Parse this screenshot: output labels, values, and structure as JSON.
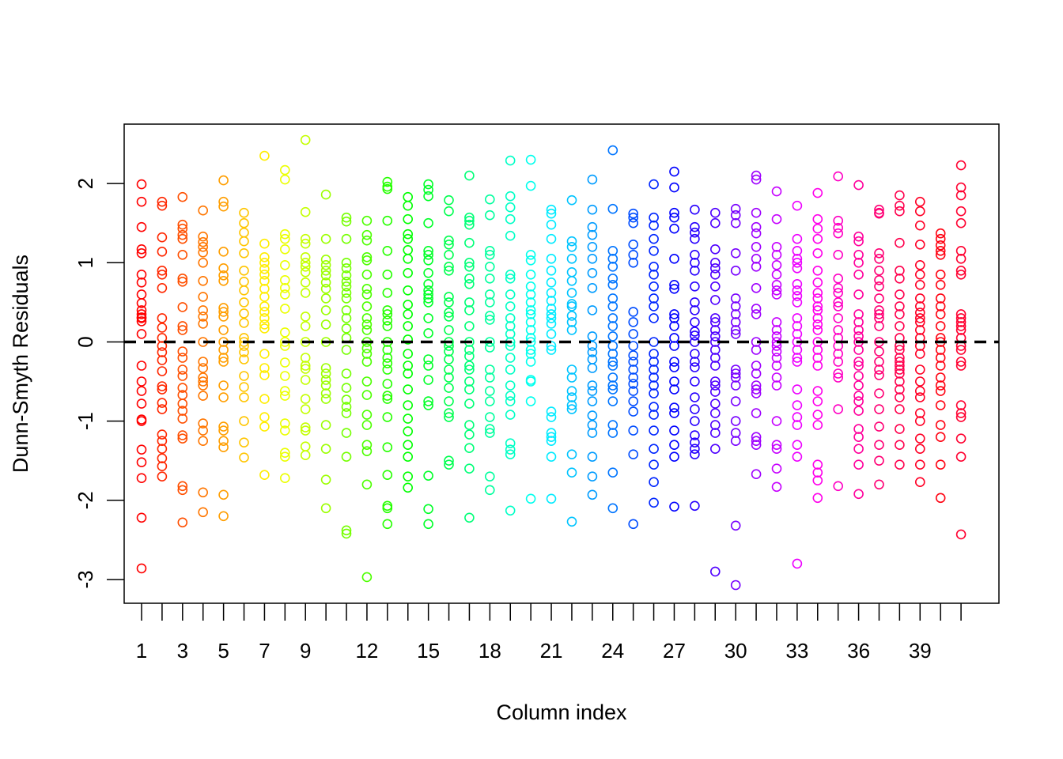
{
  "chart_data": {
    "type": "scatter",
    "title": "",
    "xlabel": "Column index",
    "ylabel": "Dunn-Smyth Residuals",
    "xlim": [
      0.15,
      42.85
    ],
    "ylim": [
      -3.3,
      2.75
    ],
    "x_tick_marks": [
      1,
      2,
      3,
      4,
      5,
      6,
      7,
      8,
      9,
      10,
      11,
      12,
      13,
      14,
      15,
      16,
      17,
      18,
      19,
      20,
      21,
      22,
      23,
      24,
      25,
      26,
      27,
      28,
      29,
      30,
      31,
      32,
      33,
      34,
      35,
      36,
      37,
      38,
      39,
      40,
      41
    ],
    "x_tick_labels": [
      "1",
      "3",
      "5",
      "7",
      "9",
      "12",
      "15",
      "18",
      "21",
      "24",
      "27",
      "30",
      "33",
      "36",
      "39"
    ],
    "y_ticks": [
      -3,
      -2,
      -1,
      0,
      1,
      2
    ],
    "y_tick_labels": [
      "-3",
      "-2",
      "-1",
      "0",
      "1",
      "2"
    ],
    "reference_line": {
      "y": 0,
      "style": "dashed",
      "color": "#000000"
    },
    "grid": false,
    "legend": "none",
    "marker": "open-circle",
    "color_scheme": "rainbow by column index (red to magenta-red)",
    "colors": [
      "#FF0000",
      "#FF2700",
      "#FF4F00",
      "#FF7600",
      "#FF9E00",
      "#FFC500",
      "#FFED00",
      "#EBFF00",
      "#C4FF00",
      "#9CFF00",
      "#75FF00",
      "#4DFF00",
      "#26FF00",
      "#00FF00",
      "#00FF28",
      "#00FF4F",
      "#00FF77",
      "#00FF9E",
      "#00FFC6",
      "#00FFED",
      "#00EBFF",
      "#00C4FF",
      "#009CFF",
      "#0075FF",
      "#004DFF",
      "#0026FF",
      "#0000FF",
      "#2800FF",
      "#4F00FF",
      "#7700FF",
      "#9E00FF",
      "#C600FF",
      "#ED00FF",
      "#FF00EB",
      "#FF00C4",
      "#FF009C",
      "#FF0075",
      "#FF004D",
      "#FF0026",
      "#FF0010",
      "#FF0030"
    ],
    "series": [
      {
        "x": 1,
        "y": [
          1.99,
          1.77,
          1.45,
          1.17,
          1.12,
          0.85,
          0.75,
          0.6,
          0.49,
          0.4,
          0.35,
          0.31,
          0.3,
          0.26,
          0.1,
          -0.3,
          -0.5,
          -0.62,
          -0.78,
          -0.98,
          -1.0,
          -1.36,
          -1.52,
          -1.72,
          -2.22,
          -2.86
        ]
      },
      {
        "x": 2,
        "y": [
          1.77,
          1.72,
          1.32,
          1.14,
          0.9,
          0.85,
          0.68,
          0.3,
          0.18,
          0.05,
          -0.05,
          -0.13,
          -0.23,
          -0.37,
          -0.56,
          -0.6,
          -0.77,
          -0.85,
          -1.17,
          -1.25,
          -1.35,
          -1.47,
          -1.57,
          -1.7
        ]
      },
      {
        "x": 3,
        "y": [
          1.83,
          1.48,
          1.43,
          1.35,
          1.3,
          1.1,
          0.8,
          0.76,
          0.44,
          0.2,
          0.15,
          -0.12,
          -0.2,
          -0.35,
          -0.43,
          -0.58,
          -0.67,
          -0.78,
          -0.87,
          -0.97,
          -1.18,
          -1.22,
          -1.82,
          -1.87,
          -2.28
        ]
      },
      {
        "x": 4,
        "y": [
          1.66,
          1.33,
          1.26,
          1.2,
          1.13,
          1.0,
          0.77,
          0.57,
          0.4,
          0.32,
          0.23,
          0.0,
          -0.25,
          -0.33,
          -0.45,
          -0.5,
          -0.55,
          -0.68,
          -1.03,
          -1.12,
          -1.25,
          -1.9,
          -2.15
        ]
      },
      {
        "x": 5,
        "y": [
          2.04,
          1.77,
          1.71,
          1.14,
          0.93,
          0.84,
          0.77,
          0.43,
          0.38,
          0.32,
          0.15,
          0.0,
          -0.1,
          -0.2,
          -0.25,
          -0.55,
          -0.7,
          -1.07,
          -1.12,
          -1.25,
          -1.33,
          -1.93,
          -2.2
        ]
      },
      {
        "x": 6,
        "y": [
          1.63,
          1.5,
          1.38,
          1.27,
          1.12,
          0.9,
          0.76,
          0.65,
          0.5,
          0.36,
          0.24,
          0.05,
          0.0,
          -0.05,
          -0.13,
          -0.22,
          -0.43,
          -0.57,
          -0.7,
          -1.0,
          -1.27,
          -1.46
        ]
      },
      {
        "x": 7,
        "y": [
          2.35,
          1.24,
          1.07,
          1.0,
          0.92,
          0.85,
          0.77,
          0.67,
          0.57,
          0.45,
          0.38,
          0.3,
          0.22,
          0.17,
          -0.15,
          -0.33,
          -0.42,
          -0.72,
          -0.95,
          -1.07,
          -1.68
        ]
      },
      {
        "x": 8,
        "y": [
          2.17,
          2.05,
          1.36,
          1.3,
          1.17,
          0.97,
          0.78,
          0.68,
          0.6,
          0.42,
          0.12,
          0.0,
          -0.05,
          -0.26,
          -0.43,
          -0.62,
          -0.68,
          -1.03,
          -1.12,
          -1.4,
          -1.45,
          -1.72
        ]
      },
      {
        "x": 9,
        "y": [
          2.55,
          1.64,
          1.3,
          1.24,
          1.07,
          1.0,
          0.95,
          0.88,
          0.75,
          0.62,
          0.32,
          0.2,
          0.0,
          -0.2,
          -0.3,
          -0.34,
          -0.48,
          -0.72,
          -0.85,
          -1.08,
          -1.12,
          -1.32,
          -1.43
        ]
      },
      {
        "x": 10,
        "y": [
          1.86,
          1.3,
          1.04,
          0.97,
          0.9,
          0.84,
          0.75,
          0.67,
          0.55,
          0.4,
          0.22,
          0.0,
          -0.33,
          -0.4,
          -0.48,
          -0.55,
          -0.65,
          -0.72,
          -1.05,
          -1.35,
          -1.74,
          -2.1
        ]
      },
      {
        "x": 11,
        "y": [
          1.57,
          1.52,
          1.3,
          1.0,
          0.93,
          0.84,
          0.76,
          0.7,
          0.62,
          0.55,
          0.4,
          0.3,
          0.17,
          0.05,
          -0.1,
          -0.4,
          -0.58,
          -0.73,
          -0.82,
          -0.9,
          -1.15,
          -1.45,
          -2.38,
          -2.42
        ]
      },
      {
        "x": 12,
        "y": [
          1.53,
          1.35,
          1.28,
          1.07,
          1.03,
          0.85,
          0.67,
          0.6,
          0.45,
          0.3,
          0.22,
          0.15,
          0.0,
          -0.08,
          -0.15,
          -0.25,
          -0.5,
          -0.67,
          -0.92,
          -1.05,
          -1.3,
          -1.38,
          -1.8,
          -2.97
        ]
      },
      {
        "x": 13,
        "y": [
          2.02,
          1.96,
          1.93,
          1.53,
          1.15,
          0.85,
          0.62,
          0.4,
          0.35,
          0.27,
          0.2,
          0.0,
          -0.1,
          -0.2,
          -0.27,
          -0.35,
          -0.53,
          -0.68,
          -0.72,
          -0.95,
          -1.33,
          -1.68,
          -2.07,
          -2.1,
          -2.3
        ]
      },
      {
        "x": 14,
        "y": [
          1.83,
          1.72,
          1.55,
          1.36,
          1.3,
          1.16,
          1.05,
          0.87,
          0.65,
          0.47,
          0.35,
          0.2,
          0.03,
          -0.15,
          -0.3,
          -0.4,
          -0.6,
          -0.8,
          -0.97,
          -1.13,
          -1.3,
          -1.45,
          -1.7,
          -1.84
        ]
      },
      {
        "x": 15,
        "y": [
          1.99,
          1.92,
          1.84,
          1.5,
          1.15,
          1.1,
          1.03,
          0.87,
          0.73,
          0.65,
          0.6,
          0.55,
          0.5,
          0.3,
          0.11,
          -0.22,
          -0.3,
          -0.48,
          -0.75,
          -0.8,
          -1.69,
          -2.11,
          -2.3
        ]
      },
      {
        "x": 16,
        "y": [
          1.79,
          1.65,
          1.28,
          1.23,
          1.1,
          0.95,
          0.9,
          0.57,
          0.5,
          0.37,
          0.32,
          0.15,
          0.0,
          -0.05,
          -0.12,
          -0.22,
          -0.35,
          -0.45,
          -0.58,
          -0.75,
          -0.9,
          -0.95,
          -1.5,
          -1.55
        ]
      },
      {
        "x": 17,
        "y": [
          2.1,
          1.57,
          1.53,
          1.48,
          1.25,
          1.0,
          0.95,
          0.8,
          0.73,
          0.5,
          0.4,
          0.2,
          0.0,
          -0.1,
          -0.18,
          -0.3,
          -0.35,
          -0.5,
          -0.6,
          -0.78,
          -1.05,
          -1.17,
          -1.34,
          -1.6,
          -2.22
        ]
      },
      {
        "x": 18,
        "y": [
          1.8,
          1.6,
          1.15,
          1.1,
          0.95,
          0.8,
          0.6,
          0.5,
          0.33,
          0.28,
          0.0,
          -0.07,
          -0.35,
          -0.45,
          -0.62,
          -0.75,
          -0.95,
          -1.1,
          -1.15,
          -1.7,
          -1.87
        ]
      },
      {
        "x": 19,
        "y": [
          2.29,
          1.84,
          1.7,
          1.55,
          1.34,
          0.85,
          0.8,
          0.6,
          0.45,
          0.3,
          0.2,
          0.1,
          0.0,
          -0.05,
          -0.2,
          -0.35,
          -0.55,
          -0.68,
          -0.75,
          -0.92,
          -1.28,
          -1.36,
          -1.42,
          -2.13
        ]
      },
      {
        "x": 20,
        "y": [
          2.3,
          1.97,
          1.1,
          1.03,
          0.85,
          0.7,
          0.6,
          0.5,
          0.4,
          0.35,
          0.25,
          0.15,
          0.05,
          0.0,
          -0.1,
          -0.15,
          -0.25,
          -0.48,
          -0.5,
          -0.75,
          -1.98
        ]
      },
      {
        "x": 21,
        "y": [
          1.67,
          1.62,
          1.48,
          1.3,
          1.05,
          0.9,
          0.75,
          0.62,
          0.52,
          0.42,
          0.35,
          0.3,
          0.23,
          0.1,
          -0.05,
          -0.1,
          -0.88,
          -0.95,
          -1.15,
          -1.2,
          -1.25,
          -1.45,
          -1.98
        ]
      },
      {
        "x": 22,
        "y": [
          1.79,
          1.27,
          1.2,
          1.05,
          0.88,
          0.77,
          0.62,
          0.48,
          0.45,
          0.33,
          0.25,
          0.15,
          -0.35,
          -0.45,
          -0.62,
          -0.7,
          -0.8,
          -0.85,
          -1.42,
          -1.65,
          -2.27
        ]
      },
      {
        "x": 23,
        "y": [
          2.05,
          1.67,
          1.45,
          1.35,
          1.2,
          1.05,
          0.87,
          0.68,
          0.4,
          0.07,
          -0.05,
          -0.13,
          -0.22,
          -0.33,
          -0.55,
          -0.62,
          -0.75,
          -0.93,
          -1.05,
          -1.15,
          -1.45,
          -1.7,
          -1.93
        ]
      },
      {
        "x": 24,
        "y": [
          2.42,
          1.68,
          1.15,
          1.05,
          0.95,
          0.8,
          0.72,
          0.55,
          0.45,
          0.3,
          0.2,
          0.07,
          -0.05,
          -0.15,
          -0.25,
          -0.3,
          -0.45,
          -0.55,
          -0.6,
          -0.75,
          -1.05,
          -1.15,
          -1.65,
          -2.1
        ]
      },
      {
        "x": 25,
        "y": [
          1.62,
          1.57,
          1.5,
          1.23,
          1.1,
          1.0,
          0.38,
          0.25,
          0.1,
          -0.05,
          -0.17,
          -0.25,
          -0.35,
          -0.45,
          -0.53,
          -0.62,
          -0.75,
          -0.88,
          -1.12,
          -1.42,
          -2.3
        ]
      },
      {
        "x": 26,
        "y": [
          1.99,
          1.57,
          1.47,
          1.3,
          1.15,
          0.95,
          0.85,
          0.7,
          0.55,
          0.45,
          0.3,
          0.0,
          -0.15,
          -0.25,
          -0.35,
          -0.45,
          -0.55,
          -0.65,
          -0.82,
          -0.92,
          -1.12,
          -1.35,
          -1.55,
          -1.77,
          -2.03
        ]
      },
      {
        "x": 27,
        "y": [
          2.15,
          1.95,
          1.63,
          1.57,
          1.43,
          1.05,
          0.72,
          0.67,
          0.35,
          0.3,
          0.2,
          0.05,
          -0.05,
          -0.25,
          -0.32,
          -0.5,
          -0.6,
          -0.83,
          -0.9,
          -1.12,
          -1.3,
          -1.45,
          -2.08
        ]
      },
      {
        "x": 28,
        "y": [
          1.67,
          1.45,
          1.38,
          1.3,
          1.1,
          1.0,
          0.9,
          0.7,
          0.5,
          0.4,
          0.25,
          0.13,
          0.08,
          0.0,
          -0.15,
          -0.25,
          -0.32,
          -0.5,
          -0.7,
          -0.85,
          -1.0,
          -1.18,
          -1.27,
          -1.35,
          -1.42,
          -2.07
        ]
      },
      {
        "x": 29,
        "y": [
          1.63,
          1.5,
          1.17,
          1.0,
          0.93,
          0.85,
          0.7,
          0.53,
          0.3,
          0.25,
          0.15,
          0.07,
          0.0,
          -0.1,
          -0.2,
          -0.3,
          -0.5,
          -0.55,
          -0.63,
          -0.78,
          -0.9,
          -1.05,
          -1.15,
          -1.35,
          -2.9
        ]
      },
      {
        "x": 30,
        "y": [
          1.68,
          1.6,
          1.5,
          1.12,
          0.9,
          0.55,
          0.45,
          0.35,
          0.25,
          0.15,
          0.1,
          -0.35,
          -0.4,
          -0.45,
          -0.55,
          -0.75,
          -1.0,
          -1.15,
          -1.25,
          -2.32,
          -3.07
        ]
      },
      {
        "x": 31,
        "y": [
          2.1,
          2.05,
          1.63,
          1.45,
          1.37,
          1.2,
          1.05,
          0.95,
          0.68,
          0.42,
          0.35,
          0.0,
          -0.1,
          -0.3,
          -0.4,
          -0.55,
          -0.6,
          -0.65,
          -0.9,
          -1.2,
          -1.25,
          -1.3,
          -1.67
        ]
      },
      {
        "x": 32,
        "y": [
          1.9,
          1.55,
          1.2,
          1.1,
          0.97,
          0.85,
          0.72,
          0.65,
          0.6,
          0.25,
          0.15,
          0.07,
          0.0,
          -0.05,
          -0.12,
          -0.2,
          -0.3,
          -0.45,
          -0.55,
          -1.0,
          -1.3,
          -1.35,
          -1.6,
          -1.83
        ]
      },
      {
        "x": 33,
        "y": [
          1.72,
          1.3,
          1.15,
          1.05,
          1.0,
          0.93,
          0.73,
          0.65,
          0.58,
          0.5,
          0.3,
          0.2,
          0.1,
          0.0,
          -0.1,
          -0.2,
          -0.25,
          -0.6,
          -0.8,
          -0.95,
          -1.05,
          -1.3,
          -1.45,
          -2.8
        ]
      },
      {
        "x": 34,
        "y": [
          1.88,
          1.55,
          1.43,
          1.3,
          1.12,
          0.9,
          0.75,
          0.62,
          0.55,
          0.45,
          0.4,
          0.3,
          0.22,
          0.15,
          0.0,
          -0.1,
          -0.2,
          -0.3,
          -0.62,
          -0.75,
          -0.92,
          -1.05,
          -1.55,
          -1.65,
          -1.75,
          -1.97
        ]
      },
      {
        "x": 35,
        "y": [
          2.09,
          1.53,
          1.44,
          1.37,
          1.1,
          0.8,
          0.68,
          0.62,
          0.5,
          0.45,
          0.3,
          0.15,
          0.05,
          -0.05,
          -0.15,
          -0.25,
          -0.4,
          -0.45,
          -0.85,
          -1.82
        ]
      },
      {
        "x": 36,
        "y": [
          1.98,
          1.33,
          1.27,
          1.1,
          1.0,
          0.85,
          0.6,
          0.35,
          0.25,
          0.15,
          0.07,
          0.0,
          -0.1,
          -0.25,
          -0.3,
          -0.43,
          -0.55,
          -0.68,
          -0.75,
          -0.87,
          -1.1,
          -1.2,
          -1.35,
          -1.55,
          -1.92
        ]
      },
      {
        "x": 37,
        "y": [
          1.67,
          1.63,
          1.62,
          1.12,
          1.05,
          0.9,
          0.78,
          0.7,
          0.55,
          0.4,
          0.35,
          0.3,
          0.2,
          0.0,
          -0.12,
          -0.25,
          -0.35,
          -0.42,
          -0.65,
          -0.85,
          -1.07,
          -1.3,
          -1.5,
          -1.8
        ]
      },
      {
        "x": 38,
        "y": [
          1.85,
          1.72,
          1.65,
          1.25,
          0.9,
          0.8,
          0.6,
          0.45,
          0.35,
          0.2,
          0.05,
          -0.05,
          -0.1,
          -0.2,
          -0.25,
          -0.3,
          -0.35,
          -0.4,
          -0.5,
          -0.6,
          -0.7,
          -0.85,
          -1.1,
          -1.3,
          -1.55
        ]
      },
      {
        "x": 39,
        "y": [
          1.77,
          1.65,
          1.47,
          1.23,
          0.97,
          0.85,
          0.72,
          0.55,
          0.45,
          0.37,
          0.3,
          0.25,
          0.15,
          0.05,
          -0.05,
          -0.15,
          -0.35,
          -0.5,
          -0.62,
          -0.7,
          -0.9,
          -1.0,
          -1.22,
          -1.35,
          -1.55,
          -1.77
        ]
      },
      {
        "x": 40,
        "y": [
          1.37,
          1.3,
          1.22,
          1.15,
          1.1,
          0.85,
          0.72,
          0.55,
          0.45,
          0.35,
          0.2,
          0.05,
          0.0,
          -0.1,
          -0.2,
          -0.3,
          -0.45,
          -0.55,
          -0.62,
          -0.8,
          -1.05,
          -1.2,
          -1.55,
          -1.97
        ]
      },
      {
        "x": 41,
        "y": [
          2.23,
          1.95,
          1.85,
          1.65,
          1.5,
          1.15,
          1.05,
          0.9,
          0.85,
          0.35,
          0.3,
          0.25,
          0.2,
          0.15,
          0.05,
          -0.05,
          -0.1,
          -0.25,
          -0.3,
          -0.8,
          -0.9,
          -0.95,
          -1.22,
          -1.45,
          -2.43
        ]
      }
    ]
  }
}
